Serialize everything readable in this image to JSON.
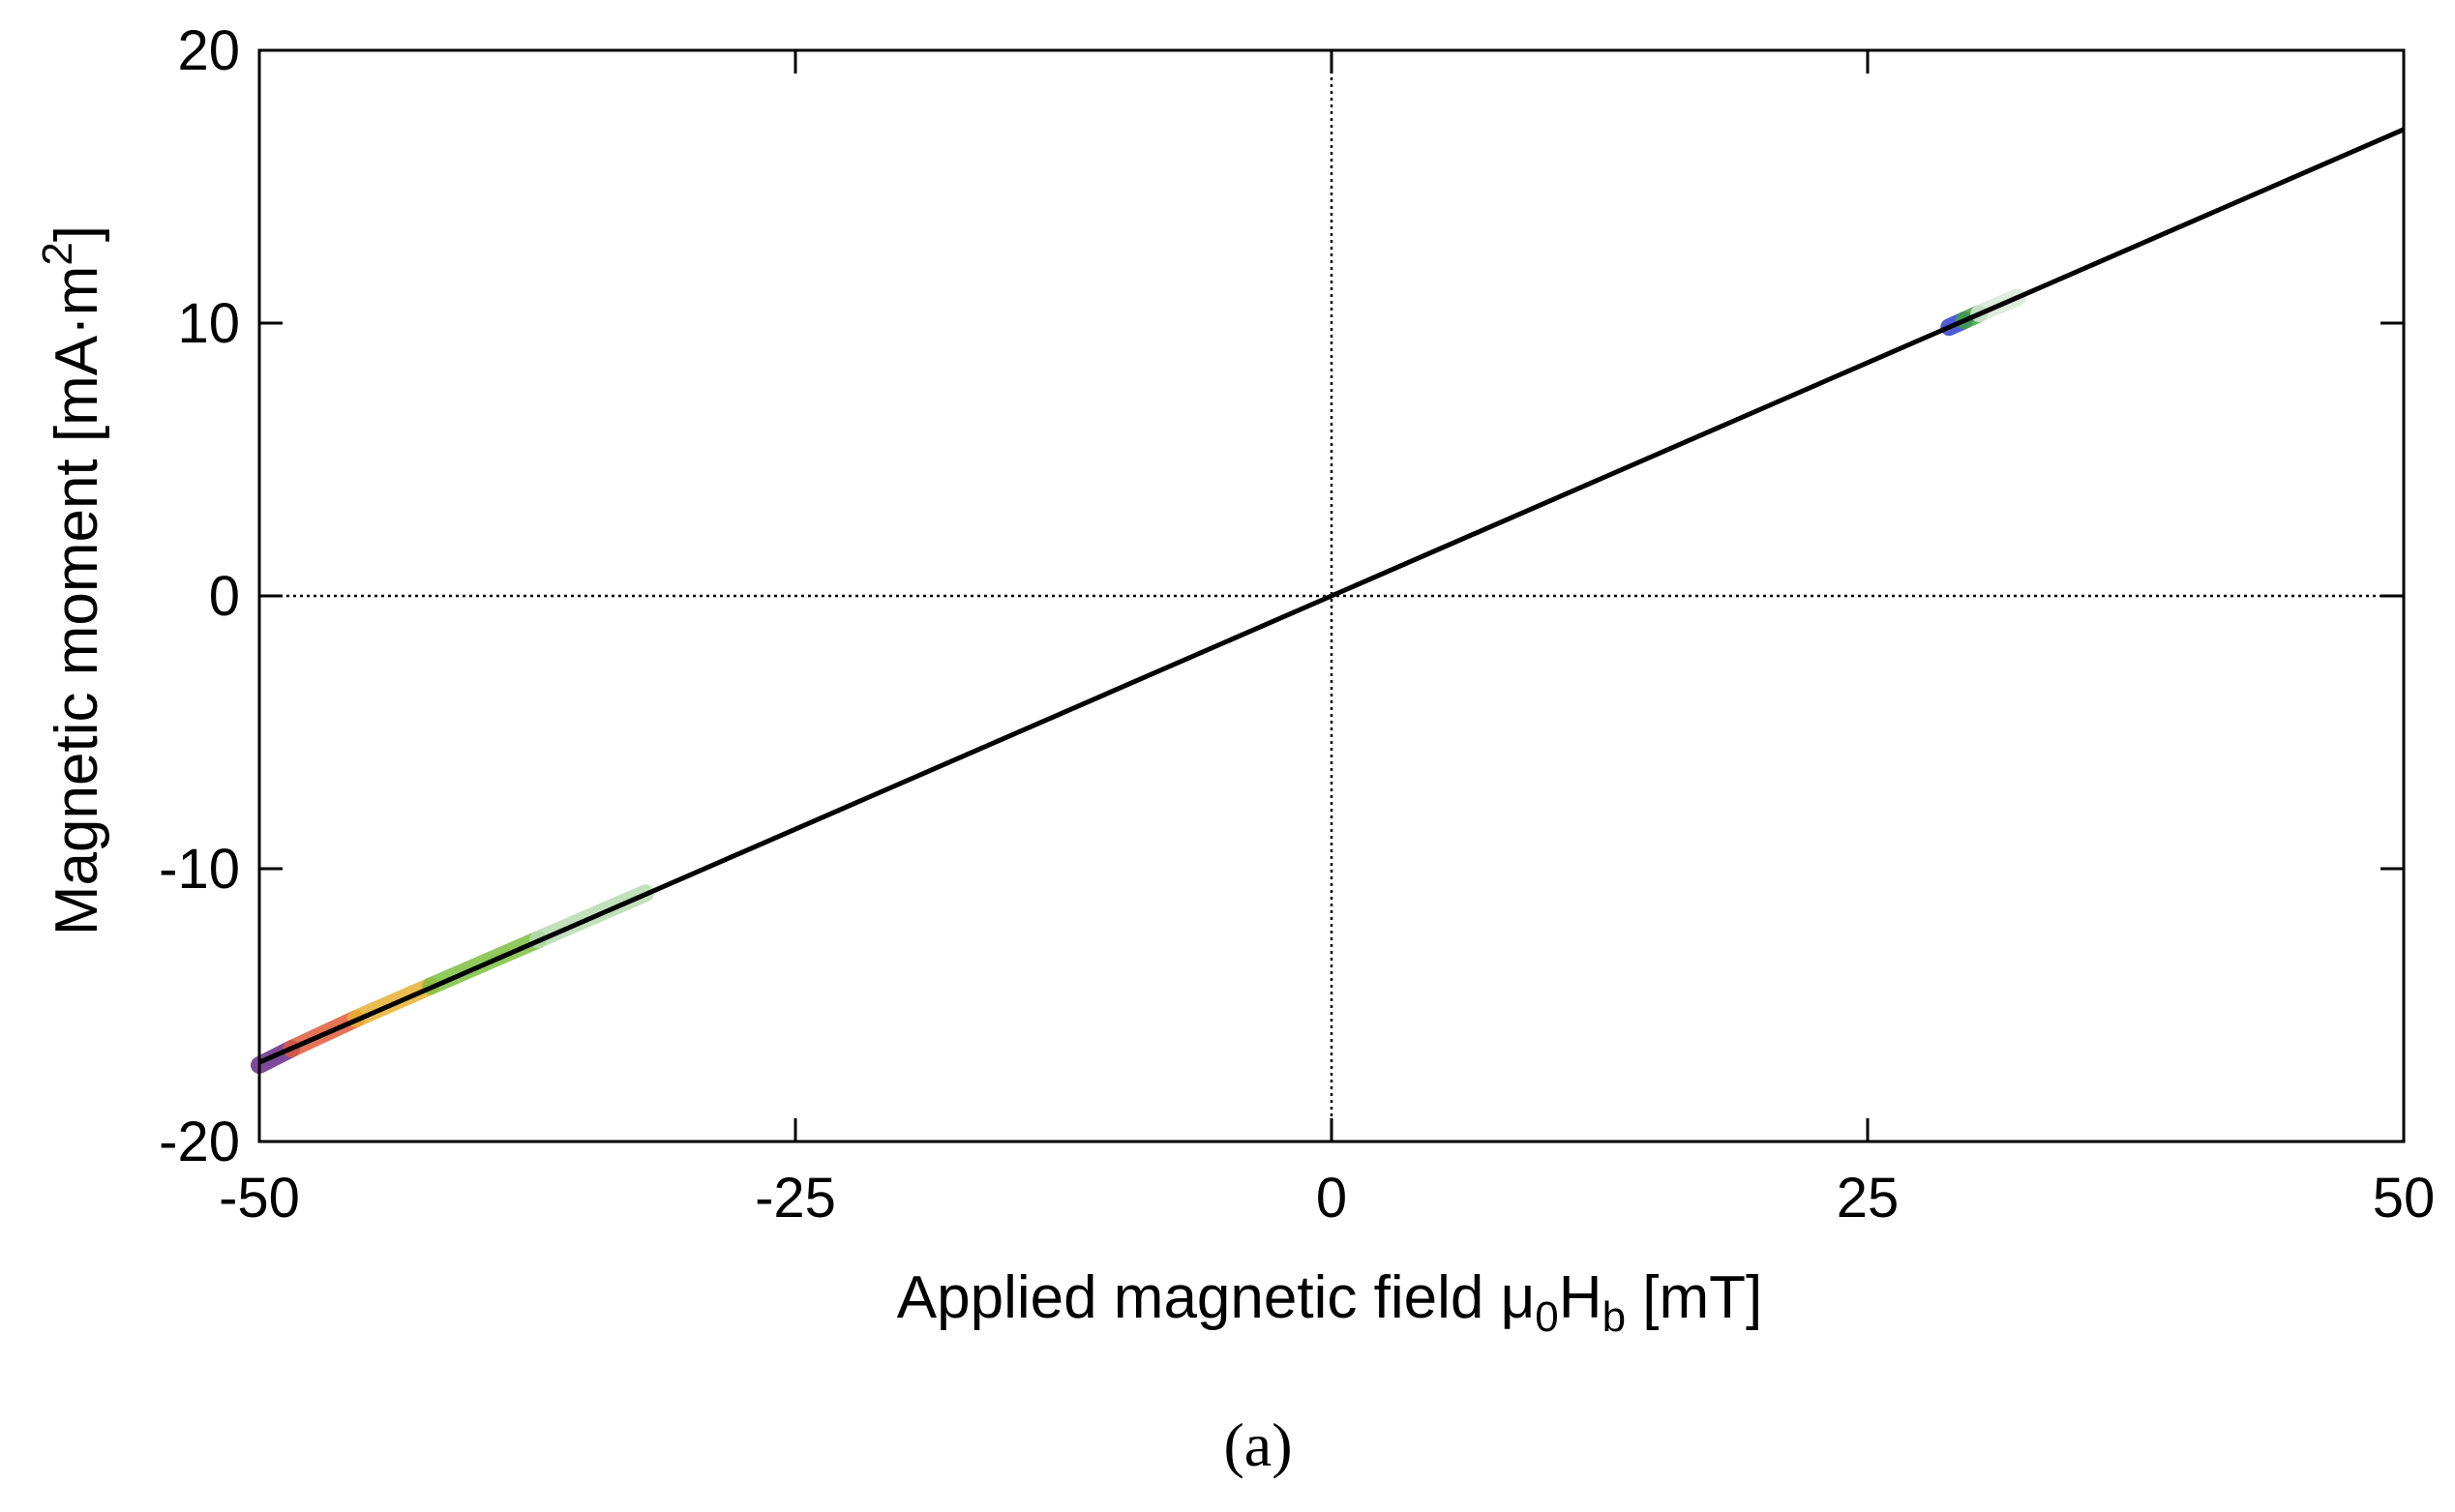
{
  "chart_data": {
    "type": "line",
    "title": "",
    "xlabel": "Applied magnetic field μ0Hb [mT]",
    "xlabel_parts": {
      "main": "Applied magnetic field μ",
      "sub1": "0",
      "mid": "H",
      "sub2": "b",
      "tail": " [mT]"
    },
    "ylabel": "Magnetic moment [mA·m2]",
    "ylabel_parts": {
      "main": "Magnetic moment [mA·m",
      "sup": "2",
      "tail": "]"
    },
    "xlim": [
      -50,
      50
    ],
    "ylim": [
      -20,
      20
    ],
    "xticks": [
      -50,
      -25,
      0,
      25,
      50
    ],
    "xtick_labels": [
      "-50",
      "-25",
      "0",
      "25",
      "50"
    ],
    "yticks": [
      -20,
      -10,
      0,
      10,
      20
    ],
    "ytick_labels": [
      "-20",
      "-10",
      "0",
      "10",
      "20"
    ],
    "zero_lines": true,
    "grid": false,
    "series": [
      {
        "color": "#000000",
        "x": [
          -50,
          0,
          50
        ],
        "y": [
          -17.1,
          0,
          17.1
        ]
      }
    ],
    "highlight_segments": [
      {
        "color": "#6a2a8a",
        "x": [
          -50,
          -48.5
        ],
        "y": [
          -17.2,
          -16.6
        ]
      },
      {
        "color": "#e05a3a",
        "x": [
          -48.5,
          -45.5
        ],
        "y": [
          -16.6,
          -15.5
        ]
      },
      {
        "color": "#e8b030",
        "x": [
          -45.5,
          -42
        ],
        "y": [
          -15.5,
          -14.3
        ]
      },
      {
        "color": "#7dc040",
        "x": [
          -42,
          -37
        ],
        "y": [
          -14.3,
          -12.6
        ]
      },
      {
        "color": "#b8dab0",
        "x": [
          -37,
          -32
        ],
        "y": [
          -12.6,
          -10.9
        ]
      },
      {
        "color": "#3040d0",
        "x": [
          28.8,
          29.5
        ],
        "y": [
          9.85,
          10.1
        ]
      },
      {
        "color": "#40a040",
        "x": [
          29.5,
          30.2
        ],
        "y": [
          10.1,
          10.35
        ]
      },
      {
        "color": "#d8e8d8",
        "x": [
          30.2,
          32
        ],
        "y": [
          10.35,
          10.95
        ]
      }
    ]
  },
  "caption": "(a)"
}
